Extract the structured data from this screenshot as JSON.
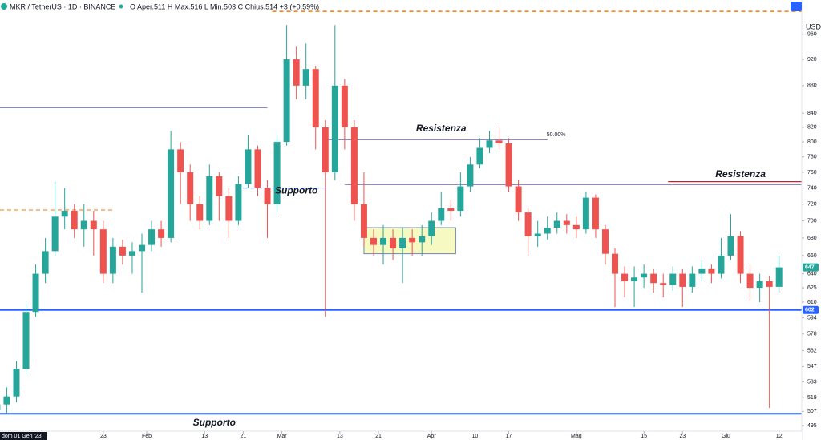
{
  "chart_data": {
    "type": "candlestick",
    "title": "MKR / TetherUS · 1D · BINANCE",
    "ohlc_legend": "O Aper.511 H Max.516 L Min.503 C Chius.514 +3 (+0.59%)",
    "unit": "USDT",
    "log": true,
    "up_color": "#26a69a",
    "down_color": "#ef5350",
    "xlim": [
      0.6,
      166.7
    ],
    "ylim": [
      489,
      990
    ],
    "xticks": [
      {
        "value": 0,
        "label": "dom 01 Gen '23"
      },
      {
        "value": 22,
        "label": "23"
      },
      {
        "value": 31,
        "label": "Feb"
      },
      {
        "value": 43,
        "label": "13"
      },
      {
        "value": 51,
        "label": "21"
      },
      {
        "value": 59,
        "label": "Mar"
      },
      {
        "value": 71,
        "label": "13"
      },
      {
        "value": 79,
        "label": "21"
      },
      {
        "value": 90,
        "label": "Apr"
      },
      {
        "value": 99,
        "label": "10"
      },
      {
        "value": 106,
        "label": "17"
      },
      {
        "value": 120,
        "label": "Mag"
      },
      {
        "value": 134,
        "label": "15"
      },
      {
        "value": 142,
        "label": "23"
      },
      {
        "value": 151,
        "label": "Giu"
      },
      {
        "value": 162,
        "label": "12"
      }
    ],
    "yticks": [
      960,
      920,
      880,
      840,
      820,
      800,
      780,
      760,
      740,
      720,
      700,
      680,
      660,
      640,
      625,
      610,
      594,
      578,
      562,
      547,
      533,
      519,
      507,
      495
    ],
    "x": [
      0,
      2,
      4,
      6,
      8,
      10,
      12,
      14,
      16,
      18,
      20,
      22,
      24,
      26,
      28,
      30,
      32,
      34,
      36,
      38,
      40,
      42,
      44,
      46,
      48,
      50,
      52,
      54,
      56,
      58,
      60,
      62,
      64,
      66,
      68,
      70,
      72,
      74,
      76,
      78,
      80,
      82,
      84,
      86,
      88,
      90,
      92,
      94,
      96,
      98,
      100,
      102,
      104,
      106,
      108,
      110,
      112,
      114,
      116,
      118,
      120,
      122,
      124,
      126,
      128,
      130,
      132,
      134,
      136,
      138,
      140,
      142,
      144,
      146,
      148,
      150,
      152,
      154,
      156,
      158,
      160,
      162
    ],
    "ohlc": [
      [
        508,
        520,
        500,
        513
      ],
      [
        513,
        528,
        505,
        520
      ],
      [
        520,
        552,
        515,
        545
      ],
      [
        545,
        608,
        540,
        600
      ],
      [
        600,
        650,
        595,
        640
      ],
      [
        640,
        680,
        630,
        665
      ],
      [
        665,
        748,
        660,
        705
      ],
      [
        705,
        740,
        690,
        712
      ],
      [
        712,
        720,
        680,
        690
      ],
      [
        690,
        720,
        670,
        700
      ],
      [
        700,
        712,
        660,
        690
      ],
      [
        690,
        700,
        630,
        640
      ],
      [
        640,
        680,
        630,
        670
      ],
      [
        670,
        678,
        650,
        660
      ],
      [
        660,
        675,
        640,
        665
      ],
      [
        665,
        685,
        620,
        672
      ],
      [
        672,
        700,
        665,
        690
      ],
      [
        690,
        700,
        670,
        680
      ],
      [
        680,
        815,
        675,
        790
      ],
      [
        790,
        800,
        720,
        760
      ],
      [
        760,
        770,
        700,
        720
      ],
      [
        720,
        730,
        690,
        700
      ],
      [
        700,
        770,
        695,
        755
      ],
      [
        755,
        760,
        700,
        730
      ],
      [
        730,
        740,
        680,
        700
      ],
      [
        700,
        755,
        695,
        745
      ],
      [
        745,
        810,
        740,
        790
      ],
      [
        790,
        795,
        730,
        740
      ],
      [
        740,
        750,
        680,
        720
      ],
      [
        720,
        810,
        710,
        800
      ],
      [
        800,
        975,
        795,
        920
      ],
      [
        920,
        940,
        860,
        880
      ],
      [
        880,
        945,
        860,
        905
      ],
      [
        905,
        910,
        790,
        820
      ],
      [
        820,
        830,
        595,
        760
      ],
      [
        760,
        975,
        750,
        880
      ],
      [
        880,
        890,
        790,
        820
      ],
      [
        820,
        830,
        700,
        720
      ],
      [
        720,
        760,
        670,
        680
      ],
      [
        680,
        690,
        660,
        672
      ],
      [
        672,
        695,
        650,
        680
      ],
      [
        680,
        690,
        655,
        668
      ],
      [
        668,
        692,
        630,
        680
      ],
      [
        680,
        690,
        660,
        675
      ],
      [
        675,
        695,
        660,
        682
      ],
      [
        682,
        710,
        672,
        700
      ],
      [
        700,
        735,
        695,
        715
      ],
      [
        715,
        725,
        700,
        712
      ],
      [
        712,
        760,
        705,
        742
      ],
      [
        742,
        780,
        735,
        770
      ],
      [
        770,
        805,
        765,
        792
      ],
      [
        792,
        815,
        785,
        802
      ],
      [
        802,
        820,
        790,
        798
      ],
      [
        798,
        805,
        735,
        742
      ],
      [
        742,
        750,
        700,
        710
      ],
      [
        710,
        715,
        660,
        682
      ],
      [
        682,
        700,
        670,
        685
      ],
      [
        685,
        705,
        678,
        692
      ],
      [
        692,
        710,
        685,
        700
      ],
      [
        700,
        708,
        685,
        695
      ],
      [
        695,
        705,
        680,
        690
      ],
      [
        690,
        735,
        685,
        728
      ],
      [
        728,
        732,
        680,
        690
      ],
      [
        690,
        695,
        650,
        662
      ],
      [
        662,
        668,
        605,
        640
      ],
      [
        640,
        648,
        615,
        632
      ],
      [
        632,
        648,
        605,
        636
      ],
      [
        636,
        650,
        625,
        640
      ],
      [
        640,
        645,
        620,
        630
      ],
      [
        630,
        640,
        615,
        628
      ],
      [
        628,
        648,
        622,
        640
      ],
      [
        640,
        645,
        605,
        626
      ],
      [
        626,
        648,
        620,
        640
      ],
      [
        640,
        655,
        632,
        645
      ],
      [
        645,
        650,
        630,
        640
      ],
      [
        640,
        680,
        635,
        660
      ],
      [
        660,
        708,
        655,
        682
      ],
      [
        682,
        688,
        630,
        640
      ],
      [
        640,
        650,
        612,
        625
      ],
      [
        625,
        640,
        610,
        632
      ],
      [
        632,
        638,
        510,
        626
      ],
      [
        626,
        660,
        620,
        647
      ]
    ],
    "levels": [
      {
        "value": 602,
        "x0": 0.6,
        "x1": 166.7,
        "color": "#2962ff",
        "width": 2
      },
      {
        "value": 505,
        "x0": 0.6,
        "x1": 166.7,
        "color": "#2962ff",
        "width": 2
      },
      {
        "value": 848,
        "x0": 0.6,
        "x1": 56,
        "color": "#3f3f9a",
        "width": 1
      },
      {
        "value": 803,
        "x0": 68,
        "x1": 114,
        "color": "#6b5fb5",
        "width": 0.8,
        "label": "50.00%"
      },
      {
        "value": 744,
        "x0": 72,
        "x1": 166.7,
        "color": "#6b5fb5",
        "width": 0.8
      },
      {
        "value": 748,
        "x0": 139,
        "x1": 166.7,
        "color": "#b2283a",
        "width": 1.2
      },
      {
        "value": 713,
        "x0": 0.6,
        "x1": 24,
        "color": "#f57c00",
        "width": 1,
        "dash": true
      },
      {
        "value": 998,
        "x0": 57,
        "x1": 166.7,
        "color": "#f57c00",
        "width": 1.5,
        "dash": true
      },
      {
        "value": 740,
        "x0": 51,
        "x1": 68,
        "color": "#2962ff",
        "width": 1,
        "dash": true
      }
    ],
    "annotations": [
      {
        "text": "Resistenza",
        "x": 92,
        "value": 818,
        "color": "#e06666"
      },
      {
        "text": "Resistenza",
        "x": 154,
        "value": 757,
        "color": "#e06666"
      },
      {
        "text": "Supporto",
        "x": 62,
        "value": 736,
        "color": "#4a86d8"
      },
      {
        "text": "Supporto",
        "x": 45,
        "value": 497,
        "color": "#4a86d8"
      }
    ],
    "box": {
      "x0": 76,
      "x1": 95,
      "low": 662,
      "high": 692,
      "color": "#f4f7a8"
    },
    "price_labels": [
      {
        "value": 647,
        "color": "#26a69a"
      },
      {
        "value": 602,
        "color": "#2962ff"
      }
    ]
  }
}
